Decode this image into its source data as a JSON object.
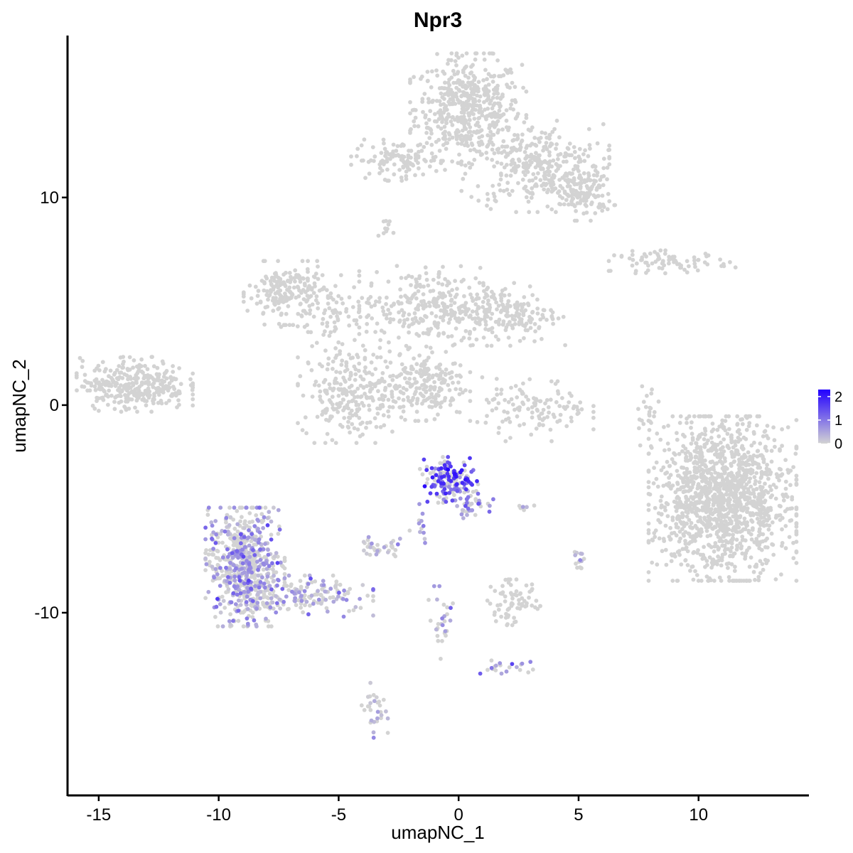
{
  "chart_data": {
    "type": "scatter",
    "title": "Npr3",
    "xlabel": "umapNC_1",
    "ylabel": "umapNC_2",
    "xlim": [
      -16.3,
      14.6
    ],
    "ylim": [
      -18.8,
      17.8
    ],
    "xticks": [
      -15,
      -10,
      -5,
      0,
      5,
      10
    ],
    "yticks": [
      -10,
      0,
      10
    ],
    "xtick_labels": [
      "-15",
      "-10",
      "-5",
      "0",
      "5",
      "10"
    ],
    "ytick_labels": [
      "-10",
      "0",
      "10"
    ],
    "color_scale": {
      "low": "#d3d3d3",
      "high": "#2200ff",
      "min": 0,
      "max": 2.3
    },
    "legend": {
      "position": "right",
      "ticks": [
        0,
        1,
        2
      ],
      "labels": [
        "0",
        "1",
        "2"
      ]
    },
    "grid": false,
    "clusters": [
      {
        "id": "C1",
        "cx": 0.4,
        "cy": 14.3,
        "sx": 1.1,
        "sy": 1.2,
        "n": 500,
        "expr": 0
      },
      {
        "id": "C2",
        "cx": 3.2,
        "cy": 11.5,
        "sx": 1.4,
        "sy": 1.0,
        "n": 320,
        "expr": 0
      },
      {
        "id": "C3",
        "cx": 5.2,
        "cy": 10.2,
        "sx": 0.6,
        "sy": 0.6,
        "n": 120,
        "expr": 0
      },
      {
        "id": "C4",
        "cx": -2.5,
        "cy": 11.8,
        "sx": 0.9,
        "sy": 0.45,
        "n": 110,
        "expr": 0
      },
      {
        "id": "C5",
        "cx": -3.0,
        "cy": 8.6,
        "sx": 0.25,
        "sy": 0.2,
        "n": 10,
        "expr": 0
      },
      {
        "id": "C6",
        "cx": 8.9,
        "cy": 6.9,
        "sx": 1.2,
        "sy": 0.25,
        "n": 80,
        "expr": 0
      },
      {
        "id": "C7",
        "cx": -7.2,
        "cy": 5.4,
        "sx": 0.8,
        "sy": 0.7,
        "n": 180,
        "expr": 0
      },
      {
        "id": "C8",
        "cx": -5.2,
        "cy": 4.5,
        "sx": 1.0,
        "sy": 0.8,
        "n": 90,
        "expr": 0
      },
      {
        "id": "C9",
        "cx": -1.5,
        "cy": 4.8,
        "sx": 1.2,
        "sy": 0.9,
        "n": 220,
        "expr": 0
      },
      {
        "id": "C10",
        "cx": 1.8,
        "cy": 4.4,
        "sx": 1.2,
        "sy": 0.7,
        "n": 220,
        "expr": 0
      },
      {
        "id": "C11",
        "cx": -4.5,
        "cy": 0.6,
        "sx": 1.0,
        "sy": 1.1,
        "n": 260,
        "expr": 0
      },
      {
        "id": "C12",
        "cx": -1.5,
        "cy": 1.0,
        "sx": 0.9,
        "sy": 0.8,
        "n": 200,
        "expr": 0
      },
      {
        "id": "C13",
        "cx": -13.5,
        "cy": 1.0,
        "sx": 1.1,
        "sy": 0.6,
        "n": 320,
        "expr": 0
      },
      {
        "id": "C14",
        "cx": 3.2,
        "cy": -0.2,
        "sx": 1.1,
        "sy": 0.7,
        "n": 120,
        "expr": 0
      },
      {
        "id": "C15",
        "cx": 7.9,
        "cy": -0.4,
        "sx": 0.25,
        "sy": 0.7,
        "n": 25,
        "expr": 0
      },
      {
        "id": "C16",
        "cx": 11.0,
        "cy": -4.5,
        "sx": 1.4,
        "sy": 1.8,
        "n": 1400,
        "expr": 0
      },
      {
        "id": "C17",
        "cx": -0.4,
        "cy": -3.6,
        "sx": 0.55,
        "sy": 0.5,
        "n": 160,
        "expr": 1.4
      },
      {
        "id": "C18",
        "cx": 0.6,
        "cy": -4.8,
        "sx": 0.4,
        "sy": 0.3,
        "n": 40,
        "expr": 0.8
      },
      {
        "id": "C19",
        "cx": -8.9,
        "cy": -7.8,
        "sx": 0.75,
        "sy": 1.3,
        "n": 650,
        "expr": 0.45
      },
      {
        "id": "C20",
        "cx": -6.2,
        "cy": -9.2,
        "sx": 1.2,
        "sy": 0.45,
        "n": 140,
        "expr": 0.3
      },
      {
        "id": "C21",
        "cx": -3.3,
        "cy": -6.8,
        "sx": 0.45,
        "sy": 0.22,
        "n": 35,
        "expr": 0.05
      },
      {
        "id": "C22",
        "cx": -1.6,
        "cy": -5.8,
        "sx": 0.2,
        "sy": 0.5,
        "n": 12,
        "expr": 0.6
      },
      {
        "id": "C23",
        "cx": 2.3,
        "cy": -9.5,
        "sx": 0.5,
        "sy": 0.5,
        "n": 70,
        "expr": 0
      },
      {
        "id": "C24",
        "cx": 5.0,
        "cy": -7.5,
        "sx": 0.2,
        "sy": 0.3,
        "n": 14,
        "expr": 0.3
      },
      {
        "id": "C25",
        "cx": -0.7,
        "cy": -10.7,
        "sx": 0.25,
        "sy": 0.9,
        "n": 28,
        "expr": 0.3
      },
      {
        "id": "C26",
        "cx": 2.0,
        "cy": -12.6,
        "sx": 0.5,
        "sy": 0.15,
        "n": 22,
        "expr": 0.7
      },
      {
        "id": "C27",
        "cx": -3.5,
        "cy": -14.7,
        "sx": 0.25,
        "sy": 0.6,
        "n": 30,
        "expr": 0.2
      },
      {
        "id": "C28",
        "cx": 2.8,
        "cy": -4.9,
        "sx": 0.2,
        "sy": 0.1,
        "n": 6,
        "expr": 0.2
      }
    ]
  }
}
